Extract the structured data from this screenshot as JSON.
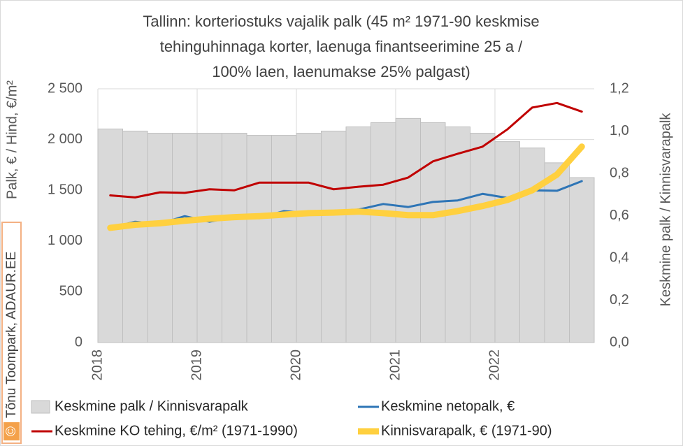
{
  "chart_data": {
    "type": "combo",
    "title": [
      "Tallinn: korteriostuks vajalik palk (45 m² 1971-90 keskmise",
      "tehinguhinnaga korter, laenuga finantseerimine 25 a /",
      "100% laen, laenumakse 25% palgast)"
    ],
    "y_label": "Palk, € / Hind, €/m²",
    "y2_label": "Keskmine palk / Kinnisvarapalk",
    "source": "Tõnu Toompark, ADAUR.EE",
    "source_symbol": "©",
    "categories": [
      "2018",
      null,
      null,
      null,
      "2019",
      null,
      null,
      null,
      "2020",
      null,
      null,
      null,
      "2021",
      null,
      null,
      null,
      "2022",
      null,
      null,
      null
    ],
    "ylim": [
      0,
      2500
    ],
    "yticks": [
      0,
      {
        "value": 500,
        "label": "500"
      },
      {
        "value": 1000,
        "label": "1 000"
      },
      {
        "value": 1500,
        "label": "1 500"
      },
      {
        "value": 2000,
        "label": "2 000"
      },
      {
        "value": 2500,
        "label": "2 500"
      }
    ],
    "y2lim": [
      0,
      1.2
    ],
    "y2ticks": [
      {
        "value": 0,
        "label": "0,0"
      },
      {
        "value": 0.2,
        "label": "0,2"
      },
      {
        "value": 0.4,
        "label": "0,4"
      },
      {
        "value": 0.6,
        "label": "0,6"
      },
      {
        "value": 0.8,
        "label": "0,8"
      },
      {
        "value": 1.0,
        "label": "1,0"
      },
      {
        "value": 1.2,
        "label": "1,2"
      }
    ],
    "grid": true,
    "series": [
      {
        "name": "Keskmine palk / Kinnisvarapalk",
        "type": "bar",
        "axis": "y2",
        "color": "#d9d9d9",
        "values": [
          1.01,
          1.0,
          0.99,
          0.99,
          0.99,
          0.99,
          0.98,
          0.98,
          0.99,
          1.0,
          1.02,
          1.04,
          1.06,
          1.04,
          1.02,
          0.99,
          0.95,
          0.92,
          0.85,
          0.78
        ]
      },
      {
        "name": "Keskmine netopalk, €",
        "type": "line",
        "color": "#2e75b6",
        "width": 3,
        "values": [
          1130,
          1190,
          1170,
          1245,
          1190,
          1240,
          1225,
          1295,
          1275,
          1295,
          1310,
          1365,
          1335,
          1385,
          1400,
          1465,
          1425,
          1500,
          1495,
          1590
        ]
      },
      {
        "name": "Keskmine KO tehing, €/m² (1971-1990)",
        "type": "line",
        "color": "#c00000",
        "width": 3,
        "values": [
          1450,
          1430,
          1480,
          1475,
          1510,
          1500,
          1575,
          1575,
          1575,
          1510,
          1535,
          1555,
          1625,
          1785,
          1860,
          1930,
          2100,
          2315,
          2360,
          2275
        ]
      },
      {
        "name": "Kinnisvarapalk, € (1971-90)",
        "type": "line",
        "color": "#ffd03f",
        "width": 9,
        "values": [
          1130,
          1160,
          1175,
          1200,
          1220,
          1235,
          1245,
          1260,
          1275,
          1280,
          1290,
          1275,
          1255,
          1255,
          1295,
          1345,
          1405,
          1500,
          1655,
          1930
        ]
      }
    ]
  }
}
